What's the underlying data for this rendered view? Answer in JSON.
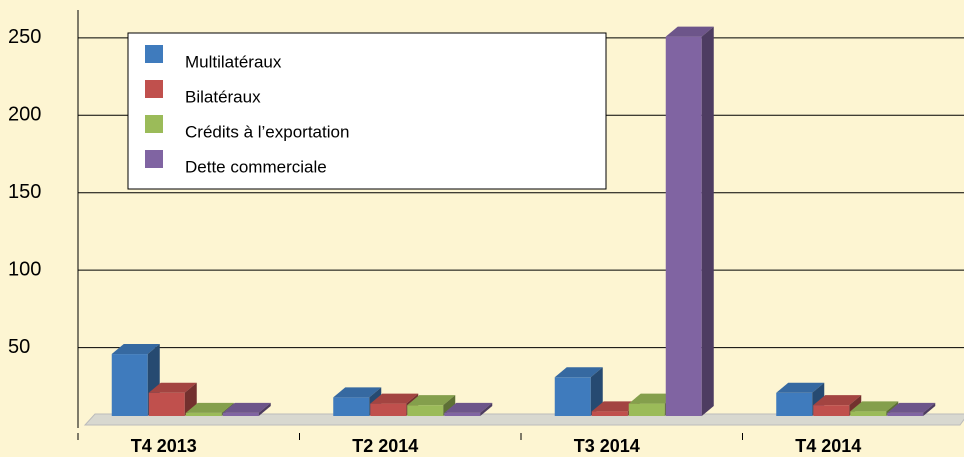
{
  "chart_data": {
    "type": "bar3d",
    "categories": [
      "T4 2013",
      "T2 2014",
      "T3 2014",
      "T4 2014"
    ],
    "series": [
      {
        "name": "Multilatéraux",
        "color": "#3f7bbd",
        "values": [
          40,
          12,
          25,
          15
        ]
      },
      {
        "name": "Bilatéraux",
        "color": "#c0504d",
        "values": [
          15,
          8,
          3,
          7
        ]
      },
      {
        "name": "Crédits à l’exportation",
        "color": "#9bbb59",
        "values": [
          2,
          7,
          8,
          3
        ]
      },
      {
        "name": "Dette commerciale",
        "color": "#8064a2",
        "values": [
          2,
          2,
          245,
          2
        ]
      }
    ],
    "ylim": [
      0,
      268
    ],
    "yticks": [
      50,
      100,
      150,
      200,
      250
    ],
    "grid": true,
    "legend": "top-left"
  }
}
